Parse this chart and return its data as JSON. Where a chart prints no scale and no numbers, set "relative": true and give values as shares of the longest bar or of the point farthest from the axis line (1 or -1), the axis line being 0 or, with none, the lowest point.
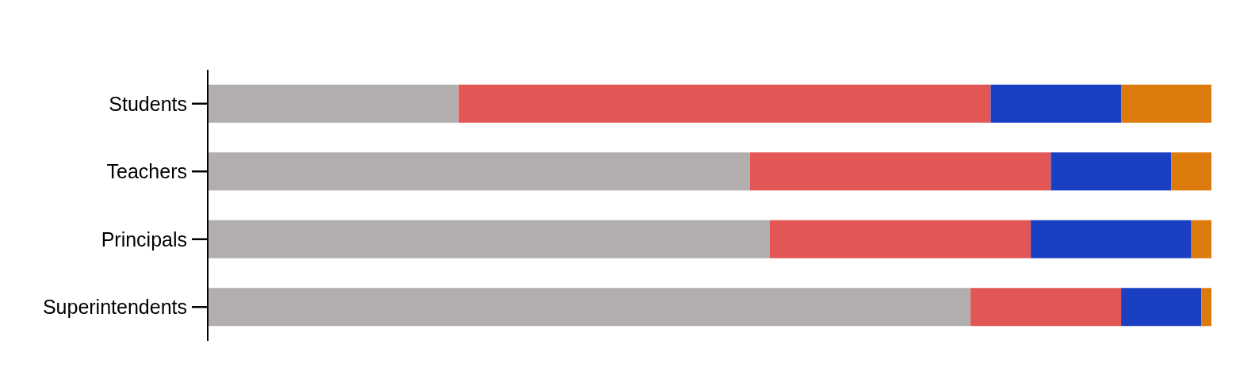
{
  "chart_data": {
    "type": "bar",
    "orientation": "horizontal",
    "stacked": true,
    "relative": true,
    "categories": [
      "Students",
      "Teachers",
      "Principals",
      "Superintendents"
    ],
    "series": [
      {
        "color": "#b3aeae",
        "values": [
          0.25,
          0.54,
          0.56,
          0.76
        ]
      },
      {
        "color": "#e35656",
        "values": [
          0.53,
          0.3,
          0.26,
          0.15
        ]
      },
      {
        "color": "#1b3fc2",
        "values": [
          0.13,
          0.12,
          0.16,
          0.08
        ]
      },
      {
        "color": "#dc7a0c",
        "values": [
          0.09,
          0.04,
          0.02,
          0.01
        ]
      }
    ]
  }
}
